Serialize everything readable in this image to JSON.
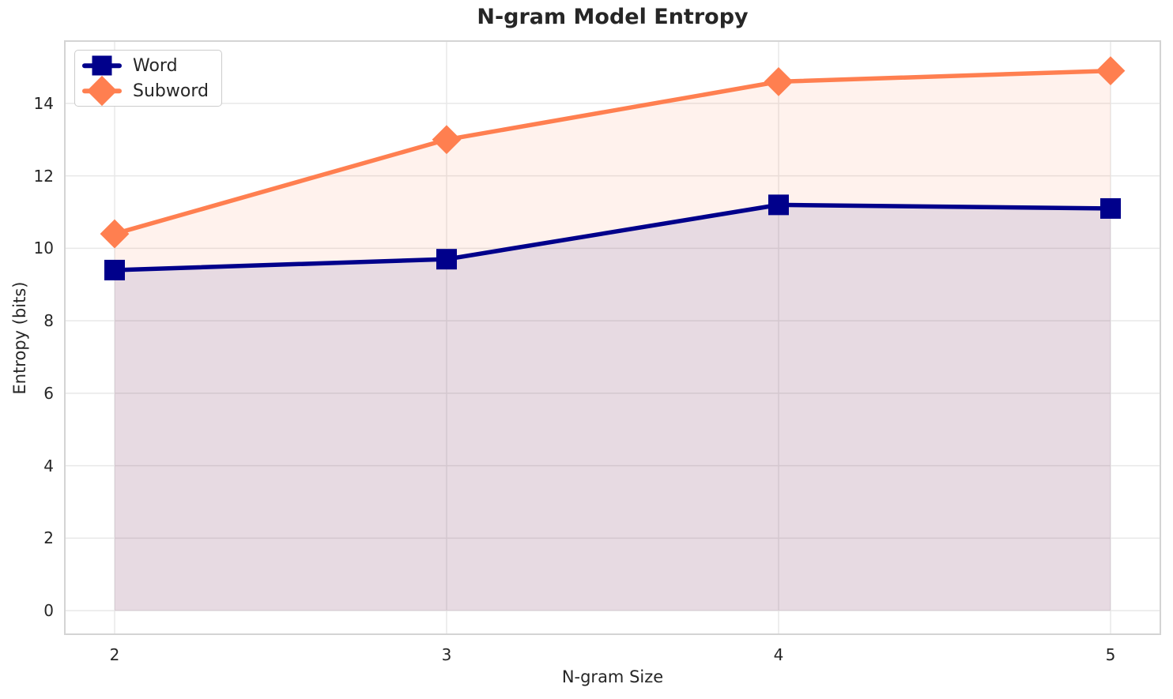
{
  "figure": {
    "background": "#ffffff"
  },
  "chart_data": {
    "type": "line",
    "title": "N-gram Model Entropy",
    "xlabel": "N-gram Size",
    "ylabel": "Entropy (bits)",
    "x": [
      2,
      3,
      4,
      5
    ],
    "xtick_labels": [
      "2",
      "3",
      "4",
      "5"
    ],
    "yticks": [
      0,
      2,
      4,
      6,
      8,
      10,
      12,
      14
    ],
    "ytick_labels": [
      "0",
      "2",
      "4",
      "6",
      "8",
      "10",
      "12",
      "14"
    ],
    "xlim": [
      1.85,
      5.15
    ],
    "ylim": [
      -0.65,
      15.72
    ],
    "grid": true,
    "legend": {
      "position": "upper left",
      "items": [
        "Word",
        "Subword"
      ]
    },
    "series": [
      {
        "name": "Word",
        "marker": "square",
        "color": "#00008B",
        "values": [
          9.4,
          9.7,
          11.2,
          11.1
        ],
        "fill_to_zero": true
      },
      {
        "name": "Subword",
        "marker": "diamond",
        "color": "#FF7F50",
        "values": [
          10.4,
          13.0,
          14.6,
          14.9
        ],
        "fill_to_zero": true
      }
    ],
    "style": {
      "fill_alpha": 0.1,
      "grid_color": "#e8e8e8",
      "spine_color": "#d4d4d4",
      "text_color": "#262626",
      "line_width": 5.5,
      "marker_size": 26
    }
  }
}
